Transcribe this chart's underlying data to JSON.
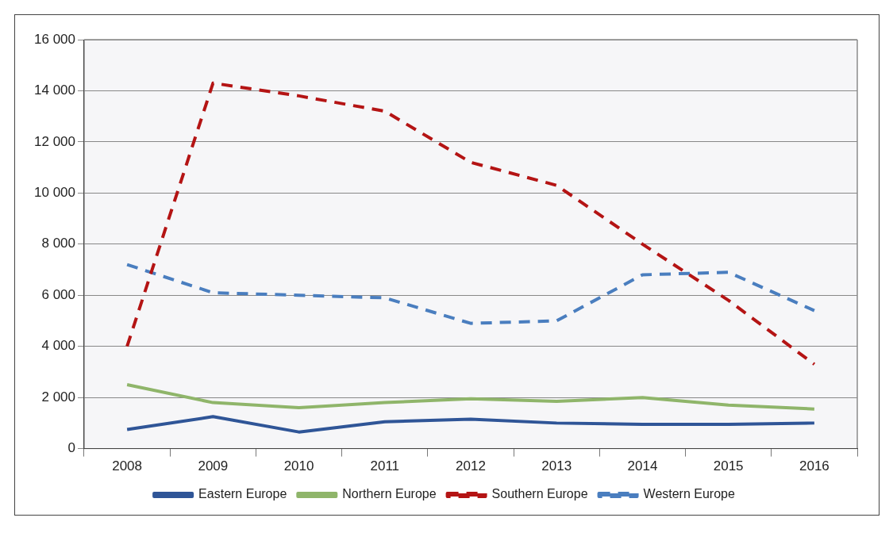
{
  "chart_data": {
    "type": "line",
    "categories": [
      "2008",
      "2009",
      "2010",
      "2011",
      "2012",
      "2013",
      "2014",
      "2015",
      "2016"
    ],
    "series": [
      {
        "name": "Eastern Europe",
        "color": "#2f5597",
        "line_style": "solid",
        "values": [
          750,
          1250,
          650,
          1050,
          1150,
          1000,
          950,
          950,
          1000
        ]
      },
      {
        "name": "Northern Europe",
        "color": "#8fb56a",
        "line_style": "solid",
        "values": [
          2500,
          1800,
          1600,
          1800,
          1950,
          1850,
          2000,
          1700,
          1550
        ]
      },
      {
        "name": "Southern Europe",
        "color": "#b41414",
        "line_style": "dashed",
        "values": [
          4000,
          14300,
          13800,
          13200,
          11200,
          10300,
          8000,
          5800,
          3300
        ]
      },
      {
        "name": "Western Europe",
        "color": "#4a7ebf",
        "line_style": "dashed",
        "values": [
          7200,
          6100,
          6000,
          5900,
          4900,
          5000,
          6800,
          6900,
          5400
        ]
      }
    ],
    "ylim": [
      0,
      16000
    ],
    "yticks": [
      {
        "value": 0,
        "label": "0"
      },
      {
        "value": 2000,
        "label": "2 000"
      },
      {
        "value": 4000,
        "label": "4 000"
      },
      {
        "value": 6000,
        "label": "6 000"
      },
      {
        "value": 8000,
        "label": "8 000"
      },
      {
        "value": 10000,
        "label": "10 000"
      },
      {
        "value": 12000,
        "label": "12 000"
      },
      {
        "value": 14000,
        "label": "14 000"
      },
      {
        "value": 16000,
        "label": "16 000"
      }
    ],
    "grid": "y",
    "legend": "bottom",
    "marker": "none"
  }
}
